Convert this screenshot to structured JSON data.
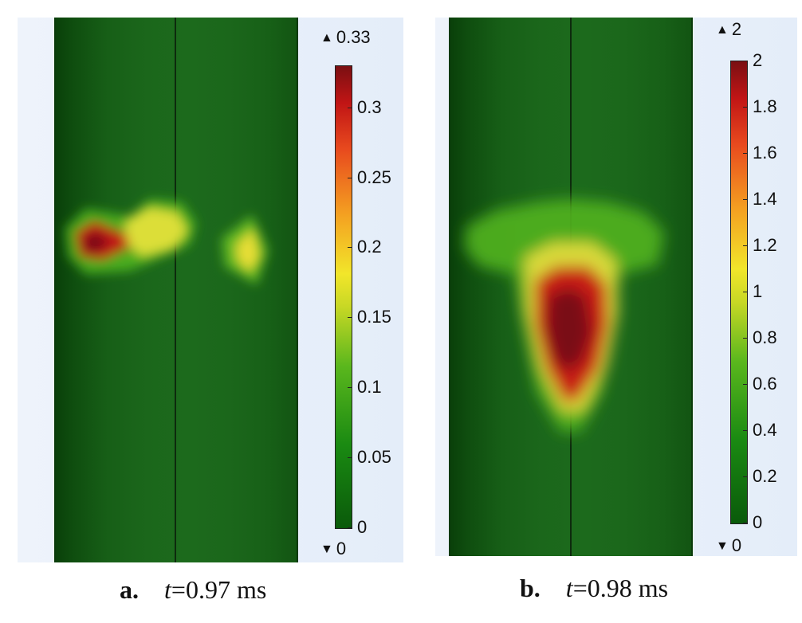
{
  "panels": [
    {
      "max_label": "0.33",
      "min_label": "0",
      "ticks": [
        "0.3",
        "0.25",
        "0.2",
        "0.15",
        "0.1",
        "0.05",
        "0"
      ],
      "tick_values": [
        0.3,
        0.25,
        0.2,
        0.15,
        0.1,
        0.05,
        0
      ],
      "range": [
        0,
        0.33
      ],
      "caption_letter": "a.",
      "caption_var": "t",
      "caption_value": "=0.97 ms"
    },
    {
      "max_label": "2",
      "min_label": "0",
      "ticks": [
        "2",
        "1.8",
        "1.6",
        "1.4",
        "1.2",
        "1",
        "0.8",
        "0.6",
        "0.4",
        "0.2",
        "0"
      ],
      "tick_values": [
        2,
        1.8,
        1.6,
        1.4,
        1.2,
        1,
        0.8,
        0.6,
        0.4,
        0.2,
        0
      ],
      "range": [
        0,
        2
      ],
      "caption_letter": "b.",
      "caption_var": "t",
      "caption_value": "=0.98 ms"
    }
  ],
  "colors": {
    "low": "#0a5a0a",
    "mid": "#f2e62a",
    "high": "#7a0f12"
  }
}
